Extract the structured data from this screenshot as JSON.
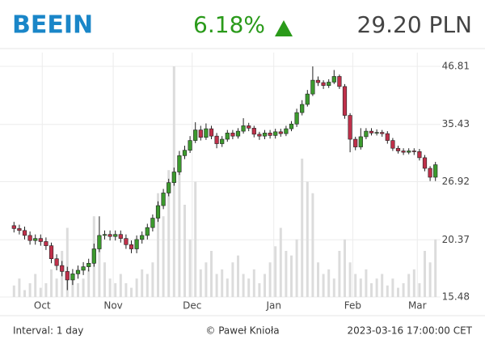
{
  "header": {
    "symbol": "BEEIN",
    "change": "6.18%",
    "price": "29.20 PLN"
  },
  "footer": {
    "interval": "Interval: 1 day",
    "author": "© Paweł Knioła",
    "timestamp": "2023-03-16 17:00:00 CET"
  },
  "chart_data": {
    "type": "candlestick",
    "categories": [
      null,
      null,
      null,
      null,
      null,
      null,
      null,
      null,
      null,
      null,
      null,
      null,
      null,
      null,
      null,
      null,
      null,
      null,
      null,
      null,
      null,
      null,
      null,
      null,
      null,
      null,
      null,
      null,
      null,
      null,
      null,
      null,
      null,
      null,
      null,
      null,
      null,
      null,
      null,
      null,
      null,
      null,
      null,
      null,
      null,
      null,
      null,
      null,
      null,
      null,
      null,
      null,
      null,
      null,
      null,
      null,
      null,
      null,
      null,
      null,
      null,
      null,
      null,
      null,
      null,
      null,
      null,
      null,
      null,
      null,
      null,
      null,
      null,
      null,
      null,
      null,
      null,
      null,
      null,
      null
    ],
    "open": [
      21.8,
      21.5,
      21.3,
      20.8,
      20.3,
      20.5,
      20.2,
      19.8,
      18.6,
      18.0,
      17.5,
      16.8,
      17.3,
      17.6,
      17.9,
      18.2,
      19.5,
      20.8,
      20.9,
      20.7,
      20.9,
      20.5,
      19.9,
      19.5,
      20.4,
      20.8,
      21.6,
      22.6,
      24.0,
      25.5,
      26.8,
      28.2,
      30.5,
      31.3,
      32.8,
      34.5,
      33.3,
      34.7,
      33.5,
      32.3,
      33.0,
      34.0,
      33.5,
      34.3,
      35.2,
      34.8,
      33.8,
      33.5,
      34.0,
      33.6,
      34.2,
      33.9,
      34.7,
      35.5,
      37.5,
      39.0,
      41.0,
      43.8,
      43.3,
      42.7,
      43.4,
      44.6,
      42.5,
      37.0,
      33.0,
      31.8,
      33.4,
      34.3,
      34.0,
      34.1,
      33.9,
      32.8,
      31.6,
      31.2,
      31.0,
      31.2,
      31.1,
      30.2,
      28.7,
      27.5
    ],
    "high": [
      22.2,
      21.9,
      21.7,
      21.2,
      20.9,
      20.9,
      20.6,
      20.1,
      19.0,
      18.4,
      17.9,
      17.7,
      18.0,
      18.3,
      18.6,
      20.0,
      22.8,
      21.3,
      21.3,
      21.3,
      21.3,
      20.9,
      20.3,
      20.8,
      21.2,
      22.0,
      23.0,
      24.5,
      26.0,
      27.3,
      28.8,
      31.2,
      32.0,
      33.5,
      35.8,
      35.2,
      35.6,
      35.2,
      34.0,
      33.5,
      34.5,
      34.5,
      34.8,
      36.5,
      35.7,
      35.2,
      34.2,
      34.5,
      34.5,
      34.7,
      34.7,
      35.2,
      36.0,
      38.2,
      39.8,
      41.8,
      46.8,
      44.6,
      43.8,
      44.0,
      46.0,
      45.0,
      43.0,
      37.4,
      33.4,
      34.8,
      34.8,
      34.8,
      34.6,
      34.5,
      34.3,
      33.2,
      32.0,
      31.6,
      31.6,
      31.6,
      31.5,
      30.6,
      29.0,
      29.6
    ],
    "low": [
      21.1,
      20.9,
      20.4,
      19.9,
      19.9,
      19.8,
      19.4,
      18.2,
      17.6,
      17.1,
      16.0,
      16.4,
      16.9,
      17.2,
      17.5,
      17.9,
      19.2,
      20.4,
      20.3,
      20.3,
      20.1,
      19.5,
      19.1,
      19.1,
      20.0,
      20.4,
      21.2,
      22.2,
      23.6,
      25.1,
      26.4,
      27.8,
      30.0,
      30.9,
      32.4,
      32.8,
      32.9,
      33.0,
      31.6,
      31.8,
      32.6,
      33.0,
      33.1,
      33.9,
      34.3,
      33.3,
      32.9,
      33.0,
      33.1,
      33.1,
      33.4,
      33.5,
      34.3,
      35.0,
      37.0,
      38.6,
      40.6,
      42.6,
      42.0,
      42.2,
      43.0,
      42.0,
      36.4,
      31.0,
      31.3,
      31.4,
      33.0,
      33.6,
      33.6,
      33.4,
      32.3,
      31.2,
      30.8,
      30.6,
      30.7,
      30.6,
      29.8,
      28.3,
      27.0,
      27.0
    ],
    "close": [
      21.5,
      21.3,
      20.8,
      20.3,
      20.5,
      20.2,
      19.8,
      18.6,
      18.0,
      17.5,
      16.8,
      17.3,
      17.6,
      17.9,
      18.2,
      19.5,
      20.8,
      20.9,
      20.7,
      20.9,
      20.5,
      19.9,
      19.5,
      20.4,
      20.8,
      21.6,
      22.6,
      24.0,
      25.5,
      26.8,
      28.2,
      30.5,
      31.3,
      32.8,
      34.5,
      33.3,
      34.7,
      33.5,
      32.3,
      33.0,
      34.0,
      33.5,
      34.3,
      35.2,
      34.8,
      33.8,
      33.5,
      34.0,
      33.6,
      34.2,
      33.9,
      34.7,
      35.5,
      37.5,
      39.0,
      41.0,
      43.8,
      43.3,
      42.7,
      43.4,
      44.6,
      42.5,
      37.0,
      33.0,
      31.8,
      33.4,
      34.3,
      34.0,
      34.1,
      33.9,
      32.8,
      31.6,
      31.2,
      31.0,
      31.2,
      31.1,
      30.2,
      28.7,
      27.5,
      29.2
    ],
    "volume": [
      5,
      8,
      3,
      6,
      10,
      4,
      6,
      12,
      8,
      20,
      30,
      10,
      6,
      8,
      12,
      35,
      25,
      15,
      8,
      6,
      10,
      6,
      4,
      8,
      12,
      10,
      15,
      45,
      35,
      55,
      100,
      60,
      40,
      25,
      50,
      12,
      15,
      20,
      10,
      12,
      8,
      15,
      18,
      10,
      8,
      12,
      6,
      10,
      15,
      22,
      30,
      20,
      18,
      25,
      60,
      50,
      45,
      15,
      10,
      12,
      8,
      20,
      25,
      15,
      10,
      8,
      12,
      6,
      8,
      10,
      5,
      8,
      4,
      6,
      10,
      12,
      6,
      20,
      15,
      25
    ],
    "up_color": "#3c9a2e",
    "down_color": "#c0304a",
    "volume_color": "#dcdcdc",
    "ylim": [
      15.48,
      46.81
    ],
    "yticks": [
      15.48,
      20.37,
      26.92,
      35.43,
      46.81
    ],
    "log_scale": true,
    "grid": true,
    "xticks": [
      {
        "value": 5.3,
        "label": "Oct"
      },
      {
        "value": 18.6,
        "label": "Nov"
      },
      {
        "value": 33.4,
        "label": "Dec"
      },
      {
        "value": 48.7,
        "label": "Jan"
      },
      {
        "value": 63.5,
        "label": "Feb"
      },
      {
        "value": 75.6,
        "label": "Mar"
      }
    ]
  }
}
